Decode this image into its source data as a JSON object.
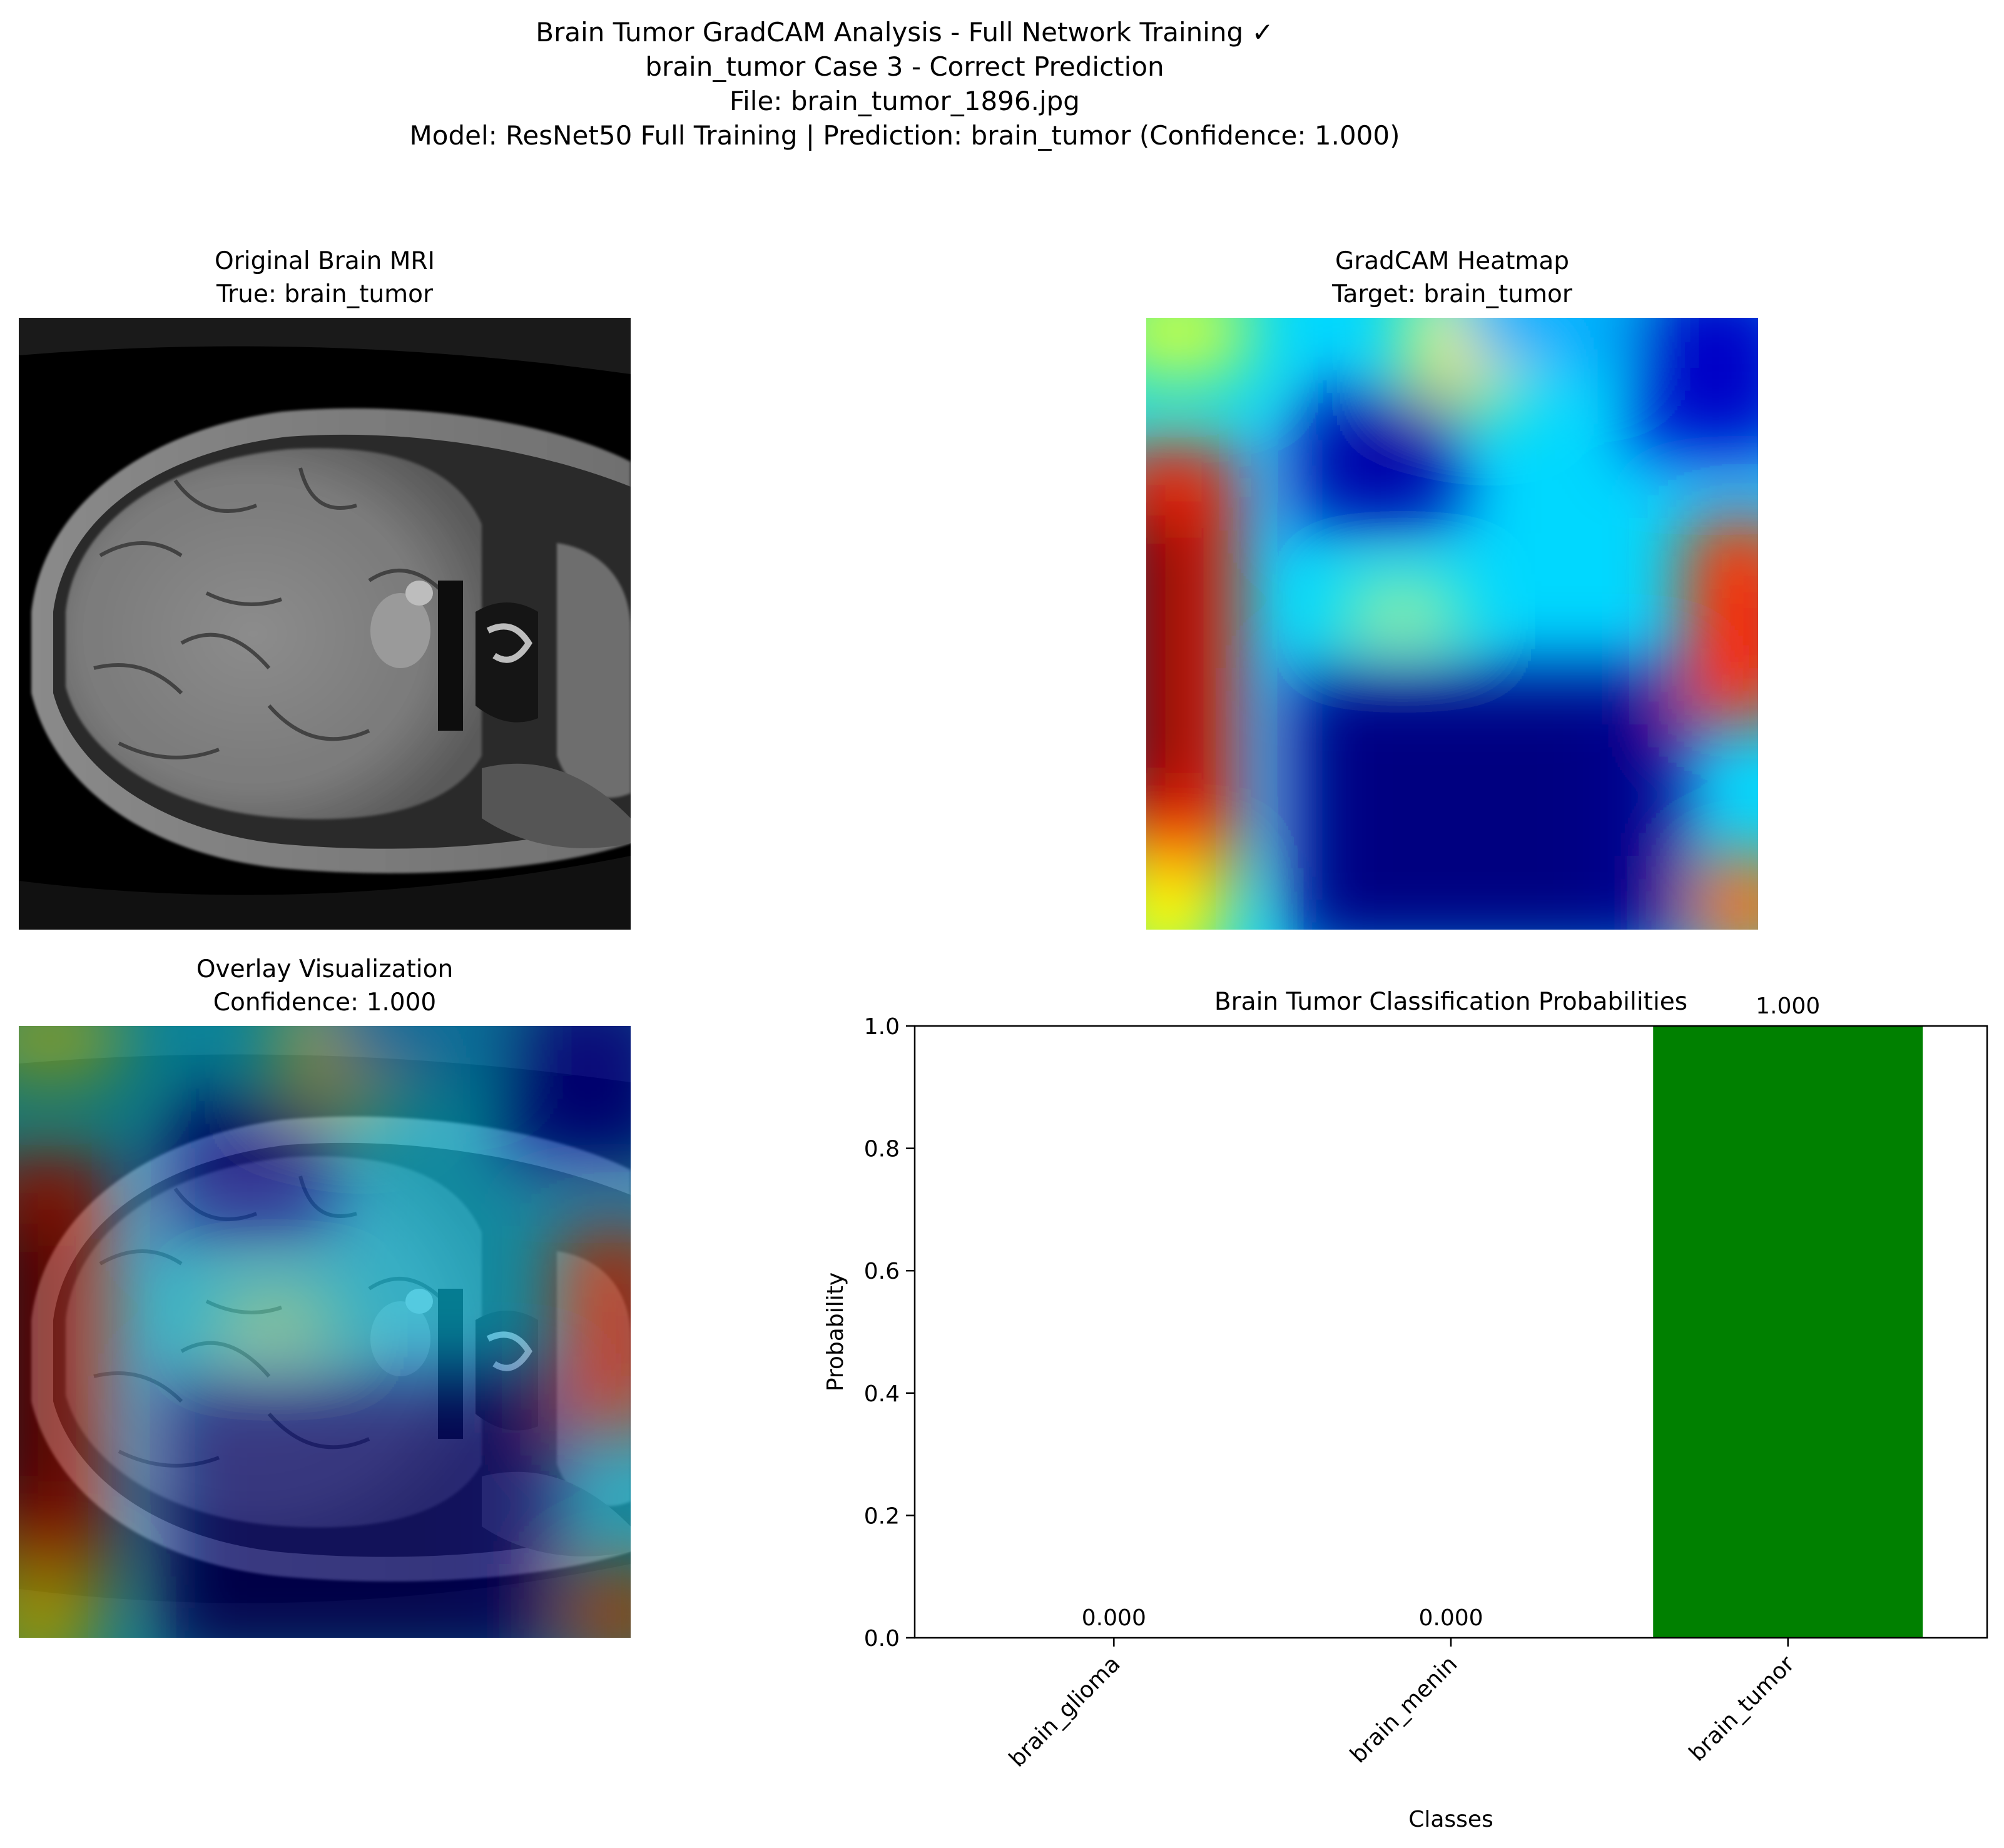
{
  "suptitle": {
    "line1": "Brain Tumor GradCAM Analysis - Full Network Training ✓",
    "line2": "brain_tumor Case 3 - Correct Prediction",
    "line3": "File: brain_tumor_1896.jpg",
    "line4": "Model: ResNet50 Full Training | Prediction: brain_tumor (Confidence: 1.000)"
  },
  "panels": {
    "original": {
      "title": "Original Brain MRI",
      "subtitle": "True: brain_tumor"
    },
    "heatmap": {
      "title": "GradCAM Heatmap",
      "subtitle": "Target: brain_tumor"
    },
    "overlay": {
      "title": "Overlay Visualization",
      "subtitle": "Confidence: 1.000"
    }
  },
  "chart_data": {
    "type": "bar",
    "title": "Brain Tumor Classification Probabilities",
    "xlabel": "Classes",
    "ylabel": "Probability",
    "categories": [
      "brain_glioma",
      "brain_menin",
      "brain_tumor"
    ],
    "values": [
      0.0,
      0.0,
      1.0
    ],
    "value_labels": [
      "0.000",
      "0.000",
      "1.000"
    ],
    "bar_colors": [
      "#ff0000",
      "#ff0000",
      "#008000"
    ],
    "ylim": [
      0,
      1
    ],
    "yticks": [
      0.0,
      0.2,
      0.4,
      0.6,
      0.8,
      1.0
    ],
    "ytick_labels": [
      "0.0",
      "0.2",
      "0.4",
      "0.6",
      "0.8",
      "1.0"
    ],
    "grid": false
  }
}
